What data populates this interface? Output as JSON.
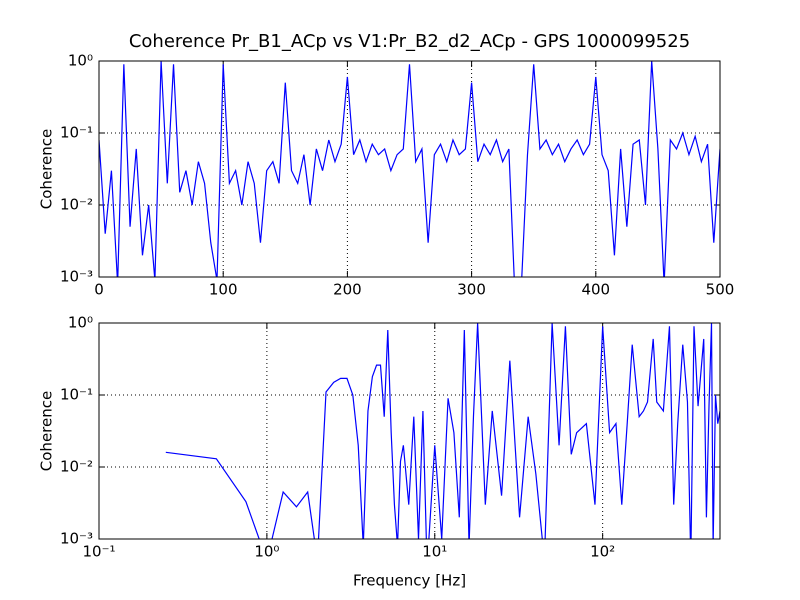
{
  "chart_data": [
    {
      "type": "line",
      "title": "Coherence Pr_B1_ACp vs V1:Pr_B2_d2_ACp - GPS 1000099525",
      "ylabel": "Coherence",
      "color": "#0000ff",
      "grid": true,
      "xscale": "linear",
      "yscale": "log",
      "xlim": [
        0,
        500
      ],
      "ylim": [
        0.001,
        1
      ],
      "xticks": [
        0,
        100,
        200,
        300,
        400,
        500
      ],
      "yticks": [
        {
          "value": 0.001,
          "label": "10⁻³"
        },
        {
          "value": 0.01,
          "label": "10⁻²"
        },
        {
          "value": 0.1,
          "label": "10⁻¹"
        },
        {
          "value": 1,
          "label": "10⁰"
        }
      ],
      "x": [
        0,
        5,
        10,
        15,
        20,
        25,
        30,
        35,
        40,
        45,
        50,
        55,
        60,
        65,
        70,
        75,
        80,
        85,
        90,
        95,
        100,
        105,
        110,
        115,
        120,
        125,
        130,
        135,
        140,
        145,
        150,
        155,
        160,
        165,
        170,
        175,
        180,
        185,
        190,
        195,
        200,
        205,
        210,
        215,
        220,
        225,
        230,
        235,
        240,
        245,
        250,
        255,
        260,
        265,
        270,
        275,
        280,
        285,
        290,
        295,
        300,
        305,
        310,
        315,
        320,
        325,
        330,
        335,
        340,
        345,
        350,
        355,
        360,
        365,
        370,
        375,
        380,
        385,
        390,
        395,
        400,
        405,
        410,
        415,
        420,
        425,
        430,
        435,
        440,
        445,
        450,
        455,
        460,
        465,
        470,
        475,
        480,
        485,
        490,
        495,
        500
      ],
      "values": [
        0.08,
        0.004,
        0.03,
        0.0008,
        0.9,
        0.005,
        0.06,
        0.002,
        0.01,
        0.0009,
        1.0,
        0.02,
        0.9,
        0.015,
        0.03,
        0.01,
        0.04,
        0.02,
        0.003,
        0.0009,
        0.9,
        0.02,
        0.03,
        0.01,
        0.04,
        0.02,
        0.003,
        0.03,
        0.04,
        0.02,
        0.5,
        0.03,
        0.02,
        0.05,
        0.01,
        0.06,
        0.03,
        0.08,
        0.04,
        0.07,
        0.6,
        0.05,
        0.08,
        0.04,
        0.07,
        0.05,
        0.06,
        0.03,
        0.05,
        0.06,
        0.9,
        0.04,
        0.06,
        0.003,
        0.05,
        0.07,
        0.04,
        0.08,
        0.05,
        0.06,
        0.5,
        0.04,
        0.07,
        0.05,
        0.08,
        0.04,
        0.06,
        0.0005,
        0.0007,
        0.05,
        0.9,
        0.06,
        0.08,
        0.05,
        0.07,
        0.04,
        0.06,
        0.08,
        0.05,
        0.07,
        0.6,
        0.05,
        0.03,
        0.002,
        0.06,
        0.005,
        0.07,
        0.08,
        0.01,
        1.0,
        0.06,
        0.0008,
        0.08,
        0.06,
        0.1,
        0.05,
        0.09,
        0.04,
        0.07,
        0.003,
        0.06
      ]
    },
    {
      "type": "line",
      "xlabel": "Frequency [Hz]",
      "ylabel": "Coherence",
      "color": "#0000ff",
      "grid": true,
      "xscale": "log",
      "yscale": "log",
      "xlim": [
        0.1,
        500
      ],
      "ylim": [
        0.001,
        1
      ],
      "xticks": [
        {
          "value": 0.1,
          "label": "10⁻¹"
        },
        {
          "value": 1,
          "label": "10⁰"
        },
        {
          "value": 10,
          "label": "10¹"
        },
        {
          "value": 100,
          "label": "10²"
        }
      ],
      "yticks": [
        {
          "value": 0.001,
          "label": "10⁻³"
        },
        {
          "value": 0.01,
          "label": "10⁻²"
        },
        {
          "value": 0.1,
          "label": "10⁻¹"
        },
        {
          "value": 1,
          "label": "10⁰"
        }
      ],
      "x": [
        0.25,
        0.5,
        0.75,
        1.0,
        1.25,
        1.5,
        1.75,
        2.0,
        2.25,
        2.5,
        2.75,
        3.0,
        3.25,
        3.5,
        3.75,
        4.0,
        4.25,
        4.5,
        4.75,
        5.0,
        5.25,
        5.5,
        5.75,
        6.0,
        6.25,
        6.5,
        7,
        7.5,
        8,
        8.5,
        9,
        10,
        11,
        12,
        13,
        14,
        15,
        16,
        17,
        18,
        20,
        22,
        25,
        28,
        32,
        36,
        40,
        45,
        50,
        55,
        60,
        65,
        70,
        80,
        90,
        100,
        110,
        120,
        130,
        140,
        150,
        165,
        175,
        185,
        200,
        210,
        230,
        250,
        265,
        280,
        300,
        320,
        335,
        350,
        370,
        400,
        415,
        430,
        445,
        455,
        470,
        485,
        500
      ],
      "values": [
        0.016,
        0.013,
        0.0033,
        0.0005,
        0.0045,
        0.0028,
        0.0045,
        0.0005,
        0.11,
        0.15,
        0.17,
        0.17,
        0.1,
        0.02,
        0.0008,
        0.06,
        0.18,
        0.26,
        0.26,
        0.05,
        0.8,
        0.03,
        0.003,
        0.0008,
        0.012,
        0.02,
        0.003,
        0.05,
        0.001,
        0.06,
        0.0004,
        0.02,
        0.001,
        0.09,
        0.03,
        0.002,
        0.8,
        0.0008,
        0.05,
        1.0,
        0.003,
        0.06,
        0.004,
        0.3,
        0.002,
        0.05,
        0.008,
        0.0005,
        1.0,
        0.02,
        0.9,
        0.015,
        0.03,
        0.04,
        0.003,
        0.9,
        0.03,
        0.04,
        0.003,
        0.04,
        0.5,
        0.05,
        0.06,
        0.08,
        0.6,
        0.08,
        0.06,
        0.9,
        0.003,
        0.04,
        0.5,
        0.08,
        0.0005,
        0.9,
        0.07,
        0.6,
        0.002,
        0.07,
        1.0,
        0.0008,
        0.1,
        0.04,
        0.06
      ]
    }
  ]
}
